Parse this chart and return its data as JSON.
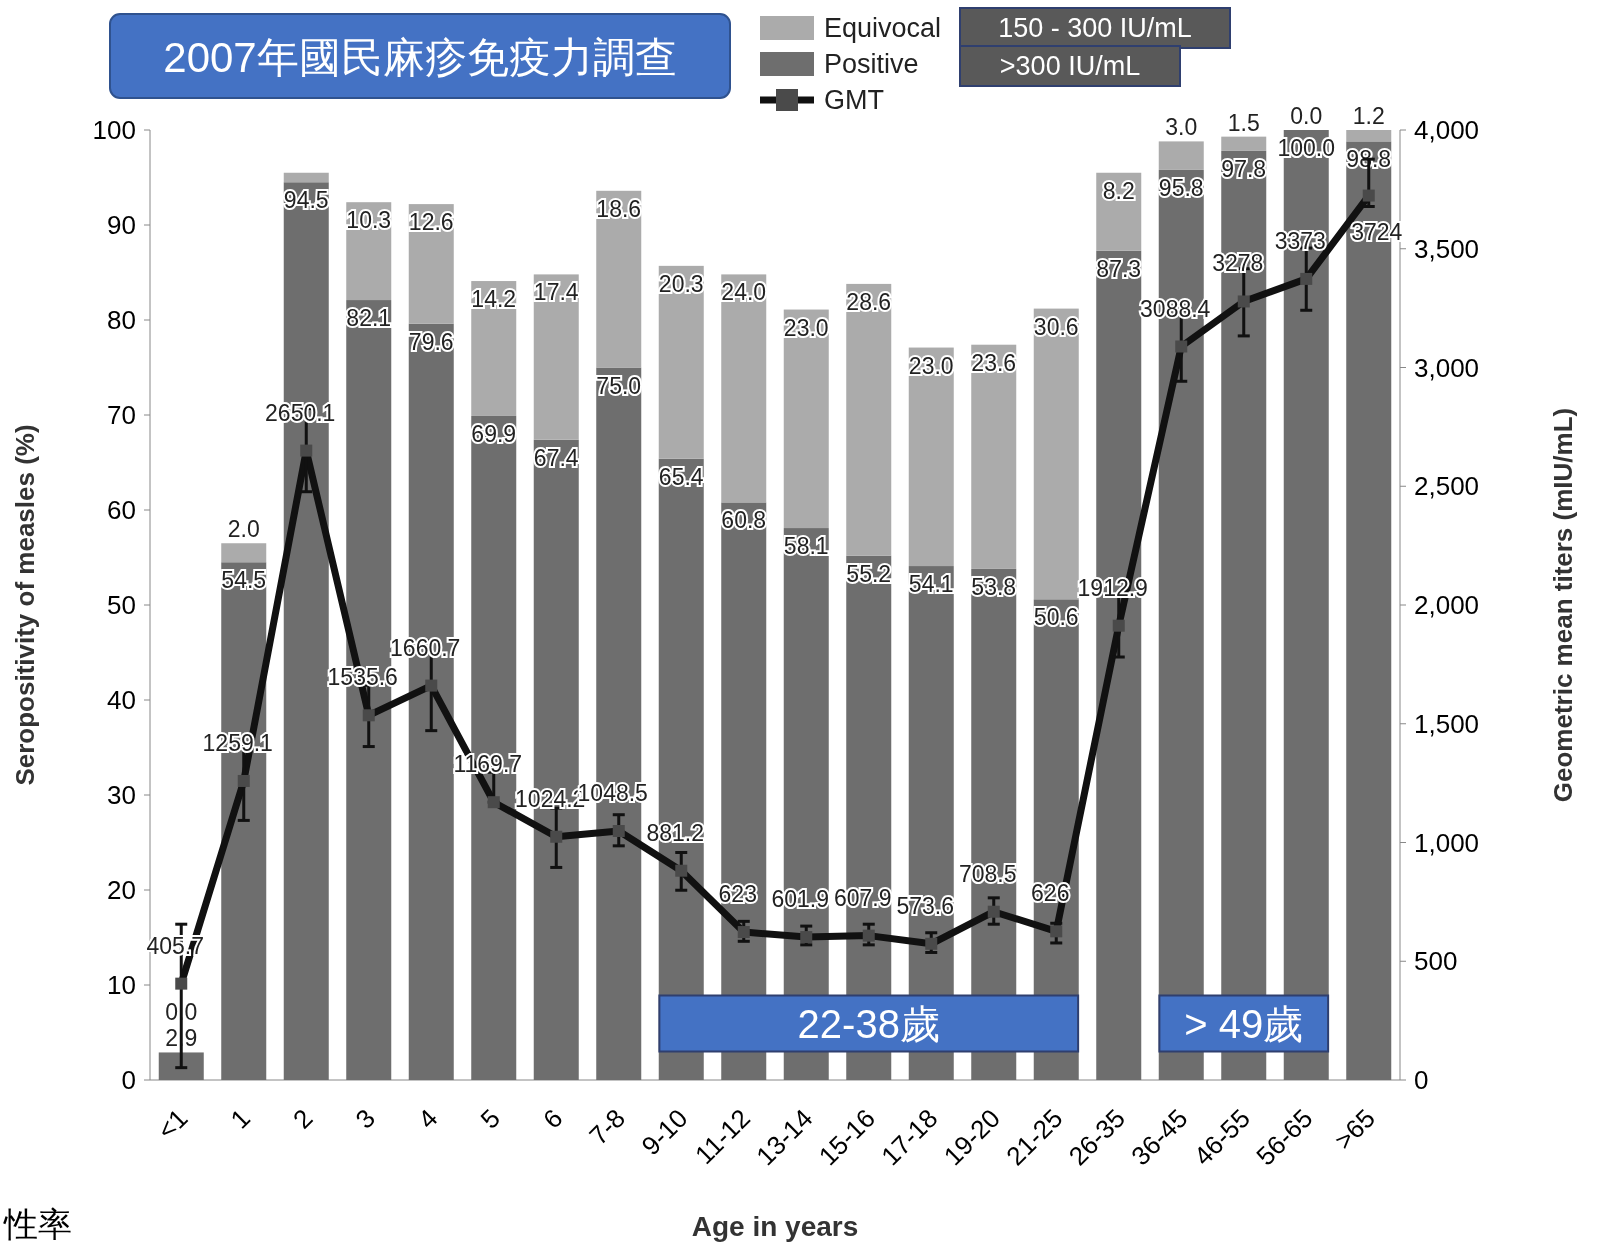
{
  "chart_data": {
    "type": "bar",
    "stacked": true,
    "title": "2007年國民麻疹免疫力調查",
    "xlabel": "Age in years",
    "ylabel": "Seropositivity of measles  (%)",
    "y2label": "Geometric mean titers (mIU/mL)",
    "categories": [
      "<1",
      "1",
      "2",
      "3",
      "4",
      "5",
      "6",
      "7-8",
      "9-10",
      "11-12",
      "13-14",
      "15-16",
      "17-18",
      "19-20",
      "21-25",
      "26-35",
      "36-45",
      "46-55",
      "56-65",
      ">65"
    ],
    "series": [
      {
        "name": "Positive",
        "color": "#6e6e6e",
        "values": [
          2.9,
          54.5,
          94.5,
          82.1,
          79.6,
          69.9,
          67.4,
          75.0,
          65.4,
          60.8,
          58.1,
          55.2,
          54.1,
          53.8,
          50.6,
          87.3,
          95.8,
          97.8,
          100.0,
          98.8
        ],
        "value_labels": [
          "2.9",
          "54.5",
          "94.5",
          "82.1",
          "79.6",
          "69.9",
          "67.4",
          "75.0",
          "65.4",
          "60.8",
          "58.1",
          "55.2",
          "54.1",
          "53.8",
          "50.6",
          "87.3",
          "95.8",
          "97.8",
          "100.0",
          "98.8"
        ]
      },
      {
        "name": "Equivocal",
        "color": "#ababab",
        "values": [
          0.0,
          2.0,
          1.0,
          10.3,
          12.6,
          14.2,
          17.4,
          18.6,
          20.3,
          24.0,
          23.0,
          28.6,
          23.0,
          23.6,
          30.6,
          8.2,
          3.0,
          1.5,
          0.0,
          1.2
        ],
        "value_labels": [
          "0.0",
          "2.0",
          null,
          "10.3",
          "12.6",
          "14.2",
          "17.4",
          "18.6",
          "20.3",
          "24.0",
          "23.0",
          "28.6",
          "23.0",
          "23.6",
          "30.6",
          "8.2",
          "3.0",
          "1.5",
          "0.0",
          "1.2"
        ]
      },
      {
        "name": "GMT",
        "type": "line",
        "axis": "y2",
        "color": "#111111",
        "marker": "square",
        "values": [
          405.7,
          1259.1,
          2650.1,
          1535.6,
          1660.7,
          1169.7,
          1024.2,
          1048.5,
          881.2,
          623,
          601.9,
          607.9,
          573.6,
          708.5,
          626,
          1912.9,
          3088.4,
          3278,
          3373,
          3724
        ],
        "errors": [
          [
            52,
            656
          ],
          [
            1093,
            1411
          ],
          [
            2477,
            2827
          ],
          [
            1404,
            1662
          ],
          [
            1471,
            1849
          ],
          [
            1169.7,
            1296
          ],
          [
            895,
            1145
          ],
          [
            986,
            1117
          ],
          [
            799,
            958
          ],
          [
            584,
            668
          ],
          [
            569,
            648
          ],
          [
            569,
            656
          ],
          [
            537,
            620
          ],
          [
            656,
            767
          ],
          [
            577,
            660
          ],
          [
            1781,
            2048
          ],
          [
            2942,
            3241
          ],
          [
            3133,
            3416
          ],
          [
            3241,
            3503
          ],
          [
            3678,
            3877
          ]
        ],
        "value_labels": [
          "405.7",
          "1259.1",
          "2650.1",
          "1535.6",
          "1660.7",
          "1169.7",
          "1024.2",
          "1048.5",
          "881.2",
          "623",
          "601.9",
          "607.9",
          "573.6",
          "708.5",
          "626",
          "1912.9",
          "3088.4",
          "3278",
          "3373",
          "3724"
        ]
      }
    ],
    "ylim": [
      0,
      100
    ],
    "yticks": [
      0,
      10,
      20,
      30,
      40,
      50,
      60,
      70,
      80,
      90,
      100
    ],
    "y2lim": [
      0,
      4000
    ],
    "y2ticks": [
      0,
      500,
      {
        "value": 1000,
        "label": "1,000"
      },
      {
        "value": 1500,
        "label": "1,500"
      },
      {
        "value": 2000,
        "label": "2,000"
      },
      {
        "value": 2500,
        "label": "2,500"
      },
      {
        "value": 3000,
        "label": "3,000"
      },
      {
        "value": 3500,
        "label": "3,500"
      },
      {
        "value": 4000,
        "label": "4,000"
      }
    ],
    "legend": "top",
    "grid": false,
    "annotations": [
      "150 - 300 IU/mL",
      ">300 IU/mL",
      "22-38歲",
      "> 49歲",
      "性率"
    ]
  }
}
